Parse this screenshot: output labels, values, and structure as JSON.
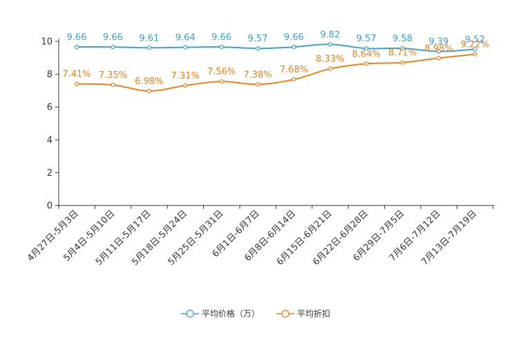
{
  "chart_data": {
    "type": "line",
    "title": "",
    "xlabel": "",
    "ylabel": "",
    "ylim": [
      0,
      10
    ],
    "yticks": [
      0,
      2,
      4,
      6,
      8,
      10
    ],
    "categories": [
      "4月27日-5月3日",
      "5月4日-5月10日",
      "5月11日-5月17日",
      "5月18日-5月24日",
      "5月25日-5月31日",
      "6月1日-6月7日",
      "6月8日-6月14日",
      "6月15日-6月21日",
      "6月22日-6月28日",
      "6月29日-7月5日",
      "7月6日-7月12日",
      "7月13日-7月19日"
    ],
    "series": [
      {
        "name": "平均价格（万）",
        "color": "#3a9fd1",
        "values": [
          9.66,
          9.66,
          9.61,
          9.64,
          9.66,
          9.57,
          9.66,
          9.82,
          9.57,
          9.58,
          9.39,
          9.52
        ],
        "labels": [
          "9.66",
          "9.66",
          "9.61",
          "9.64",
          "9.66",
          "9.57",
          "9.66",
          "9.82",
          "9.57",
          "9.58",
          "9.39",
          "9.52"
        ]
      },
      {
        "name": "平均折扣",
        "color": "#f07f16",
        "values": [
          7.41,
          7.35,
          6.98,
          7.31,
          7.56,
          7.38,
          7.68,
          8.33,
          8.64,
          8.71,
          8.98,
          9.22
        ],
        "labels": [
          "7.41%",
          "7.35%",
          "6.98%",
          "7.31%",
          "7.56%",
          "7.38%",
          "7.68%",
          "8.33%",
          "8.64%",
          "8.71%",
          "8.98%",
          "9.22%"
        ]
      }
    ],
    "legend_position": "bottom-center",
    "grid": false
  }
}
